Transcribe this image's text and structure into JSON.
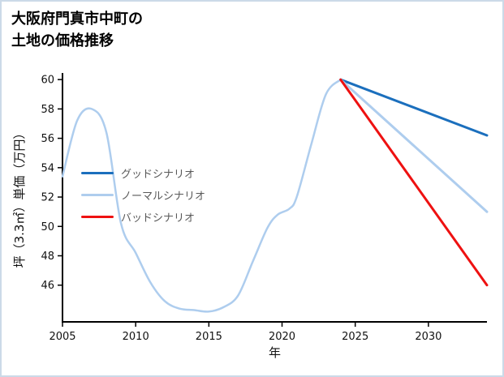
{
  "title": {
    "line1": "大阪府門真市中町の",
    "line2": "土地の価格推移"
  },
  "chart_data": {
    "type": "line",
    "title": "大阪府門真市中町の土地の価格推移",
    "xlabel": "年",
    "ylabel": "坪（3.3㎡）単価（万円）",
    "xlim": [
      2005,
      2034
    ],
    "ylim": [
      43.5,
      60.45
    ],
    "xticks": [
      2005,
      2010,
      2015,
      2020,
      2025,
      2030
    ],
    "yticks": [
      46,
      48,
      50,
      52,
      54,
      56,
      58,
      60
    ],
    "grid": false,
    "legend_position": "center-left",
    "colors": {
      "good": "#1b6fbd",
      "normal": "#aecdee",
      "bad": "#ee1111",
      "history": "#aecdee",
      "axis": "#000000",
      "tick_text": "#111111",
      "legend_text": "#595959"
    },
    "series": [
      {
        "name": "history",
        "color": "#aecdee",
        "width": 2.5,
        "smooth": true,
        "x": [
          2005,
          2006,
          2007,
          2008,
          2009,
          2010,
          2011,
          2012,
          2013,
          2014,
          2015,
          2016,
          2017,
          2018,
          2019,
          2019.7,
          2020.5,
          2021,
          2022,
          2023,
          2024
        ],
        "y": [
          53.4,
          57.2,
          58.0,
          56.4,
          50.2,
          48.2,
          46.2,
          44.9,
          44.4,
          44.3,
          44.2,
          44.5,
          45.3,
          47.6,
          49.9,
          50.8,
          51.2,
          52.0,
          55.6,
          59.0,
          60.0
        ]
      },
      {
        "name": "グッドシナリオ",
        "color": "#1b6fbd",
        "width": 3,
        "smooth": false,
        "x": [
          2024,
          2034
        ],
        "y": [
          60.0,
          56.2
        ]
      },
      {
        "name": "ノーマルシナリオ",
        "color": "#aecdee",
        "width": 3,
        "smooth": false,
        "x": [
          2024,
          2034
        ],
        "y": [
          60.0,
          51.0
        ]
      },
      {
        "name": "バッドシナリオ",
        "color": "#ee1111",
        "width": 3,
        "smooth": false,
        "x": [
          2024,
          2034
        ],
        "y": [
          60.0,
          46.0
        ]
      }
    ],
    "legend": [
      {
        "label": "グッドシナリオ",
        "color": "#1b6fbd"
      },
      {
        "label": "ノーマルシナリオ",
        "color": "#aecdee"
      },
      {
        "label": "バッドシナリオ",
        "color": "#ee1111"
      }
    ]
  }
}
